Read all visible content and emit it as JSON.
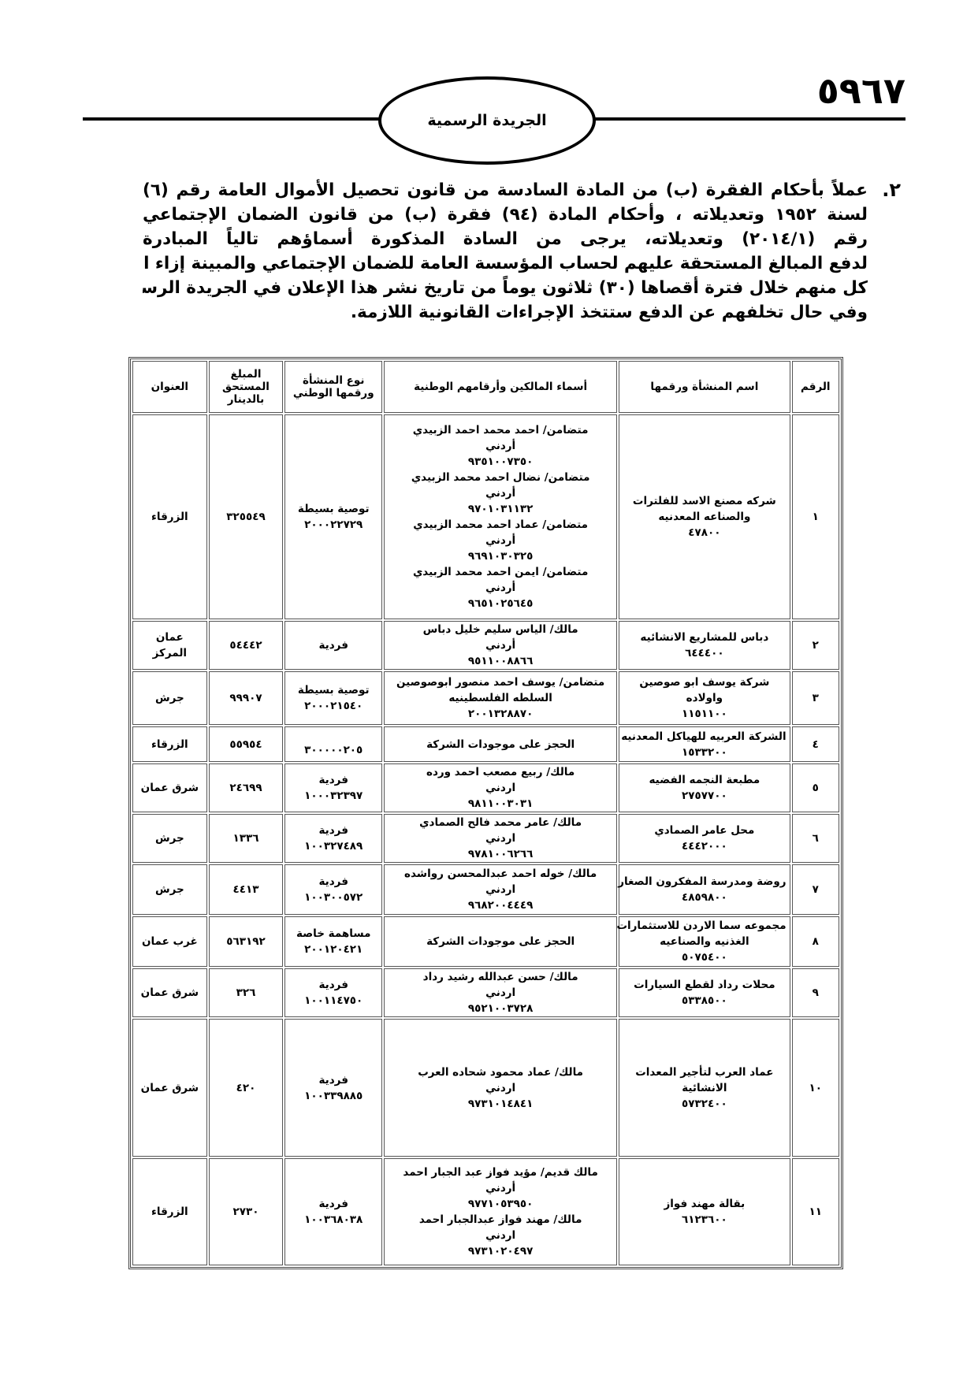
{
  "header": {
    "page_number": "٥٩٦٧",
    "gazette_title": "الجريدة الرسمية"
  },
  "notice": {
    "item_number": "٢.",
    "lines": [
      "عملاً بأحكام الفقرة (ب) من المادة السادسة من قانون تحصيل الأموال العامة رقم (٦)",
      "لسنة ١٩٥٢ وتعديلاته ، وأحكام المادة (٩٤) فقرة (ب) من قانون الضمان الإجتماعي",
      "رقم (٢٠١٤/١) وتعديلاته، يرجى من السادة المذكورة أسماؤهم تالياً المبادرة",
      "لدفع المبالغ المستحقة عليهم لحساب المؤسسة العامة للضمان الإجتماعي والمبينة إزاء اسم",
      "كل منهم خلال فترة أقصاها (٣٠) ثلاثون يوماً من تاريخ نشر هذا الإعلان في الجريدة الرسمية",
      "وفي حال تخلفهم عن الدفع ستتخذ الإجراءات القانونية اللازمة."
    ]
  },
  "table": {
    "headers": {
      "number": "الرقم",
      "establishment": "اسم المنشأة ورقمها",
      "owners": "أسماء المالكين وأرقامهم الوطنية",
      "type": [
        "نوع المنشأة",
        "ورقمها الوطني"
      ],
      "amount": [
        "المبلغ",
        "المستحق",
        "بالدينار"
      ],
      "address": "العنوان"
    },
    "rows": [
      {
        "number": "١",
        "establishment": [
          "شركه مصنع الاسد للفلترات",
          "والصناعه المعدنيه",
          "٤٧٨٠٠"
        ],
        "owners": [
          "متضامن/ احمد محمد احمد الزبيدي",
          "أردني",
          "٩٣٥١٠٠٧٣٥٠",
          "متضامن/ نضال احمد محمد الزبيدي",
          "أردني",
          "٩٧٠١٠٣١١٣٢",
          "متضامن/ عماد احمد محمد الزبيدي",
          "أردني",
          "٩٦٩١٠٣٠٣٢٥",
          "متضامن/ ايمن احمد محمد الزبيدي",
          "أردني",
          "٩٦٥١٠٢٥٦٤٥"
        ],
        "type": [
          "توصية بسيطة",
          "٢٠٠٠٢٢٧٢٩"
        ],
        "amount": "٣٢٥٥٤٩",
        "address": [
          "الزرقاء"
        ]
      },
      {
        "number": "٢",
        "establishment": [
          "دباس للمشاريع الانشائيه",
          "٦٤٤٤٠٠"
        ],
        "owners": [
          "مالك/ الياس سليم خليل دباس",
          "أردني",
          "٩٥١١٠٠٨٨٦٦"
        ],
        "type": [
          "فردية"
        ],
        "amount": "٥٤٤٤٢",
        "address": [
          "عمان",
          "المركز"
        ]
      },
      {
        "number": "٣",
        "establishment": [
          "شركة يوسف ابو صوصين",
          "واولاده",
          "١١٥١١٠٠"
        ],
        "owners": [
          "متضامن/ يوسف احمد منصور ابوصوصين",
          "السلطه الفلسطينيه",
          "٢٠٠١٣٢٨٨٧٠"
        ],
        "type": [
          "توصية بسيطة",
          "٢٠٠٠٢١٥٤٠"
        ],
        "amount": "٩٩٩٠٧",
        "address": [
          "جرش"
        ]
      },
      {
        "number": "٤",
        "establishment": [
          "الشركة العربيه للهياكل المعدنيه",
          "١٥٣٣٢٠٠"
        ],
        "owners": [
          "الحجز على موجودات الشركة"
        ],
        "type": [
          "٣٠٠٠٠٠٢٠٥"
        ],
        "amount": "٥٥٩٥٤",
        "address": [
          "الزرقاء"
        ]
      },
      {
        "number": "٥",
        "establishment": [
          "مطبعة النجمه الفضيه",
          "٢٧٥٧٧٠٠"
        ],
        "owners": [
          "مالك/ ربيع مصعب احمد ورده",
          "اردني",
          "٩٨١١٠٠٣٠٣١"
        ],
        "type": [
          "فردية",
          "١٠٠٠٣٢٣٩٧"
        ],
        "amount": "٢٤٦٩٩",
        "address": [
          "شرق عمان"
        ]
      },
      {
        "number": "٦",
        "establishment": [
          "محل عامر الصمادي",
          "٤٤٤٢٠٠٠"
        ],
        "owners": [
          "مالك/ عامر محمد فالح الصمادي",
          "اردني",
          "٩٧٨١٠٠٦٢٦٦"
        ],
        "type": [
          "فردية",
          "١٠٠٣٢٧٤٨٩"
        ],
        "amount": "١٣٣٦",
        "address": [
          "جرش"
        ]
      },
      {
        "number": "٧",
        "establishment": [
          "روضة ومدرسة المفكرون الصغار",
          "٤٨٥٩٨٠٠"
        ],
        "owners": [
          "مالك/ خوله احمد عبدالمحسن رواشده",
          "اردني",
          "٩٦٨٢٠٠٤٤٤٩"
        ],
        "type": [
          "فردية",
          "١٠٠٣٠٠٥٧٢"
        ],
        "amount": "٤٤١٣",
        "address": [
          "جرش"
        ]
      },
      {
        "number": "٨",
        "establishment": [
          "مجموعه سما الاردن للاستثمارات",
          "الغذنيه والصناعيه",
          "٥٠٧٥٤٠٠"
        ],
        "owners": [
          "الحجز على موجودات الشركة"
        ],
        "type": [
          "مساهمة خاصة",
          "٢٠٠١٢٠٤٢١"
        ],
        "amount": "٥٦٣١٩٢",
        "address": [
          "غرب عمان"
        ]
      },
      {
        "number": "٩",
        "establishment": [
          "محلات رداد لقطع السيارات",
          "٥٣٣٨٥٠٠"
        ],
        "owners": [
          "مالك/ حسن عبدالله رشيد رداد",
          "اردني",
          "٩٥٢١٠٠٣٧٢٨"
        ],
        "type": [
          "فردية",
          "١٠٠١١٤٧٥٠"
        ],
        "amount": "٣٢٦",
        "address": [
          "شرق عمان"
        ]
      },
      {
        "number": "١٠",
        "establishment": [
          "عماد العرب لتأجير المعدات",
          "الانشائية",
          "٥٧٣٢٤٠٠"
        ],
        "owners": [
          "مالك/ عماد محمود شحاده العرب",
          "اردني",
          "٩٧٣١٠١٤٨٤١"
        ],
        "type": [
          "فردية",
          "١٠٠٣٣٩٨٨٥"
        ],
        "amount": "٤٢٠",
        "address": [
          "شرق عمان"
        ]
      },
      {
        "number": "١١",
        "establishment": [
          "بقالة مهند فواز",
          "٦١٢٣٦٠٠"
        ],
        "owners": [
          "مالك قديم/ مؤيد فواز عبد الجبار احمد",
          "أردني",
          "٩٧٧١٠٥٣٩٥٠",
          "مالك/ مهند فواز عبدالجبار احمد",
          "اردني",
          "٩٧٣١٠٢٠٤٩٧"
        ],
        "type": [
          "فردية",
          "١٠٠٣٦٨٠٣٨"
        ],
        "amount": "٢٧٣٠",
        "address": [
          "الزرقاء"
        ]
      }
    ]
  }
}
